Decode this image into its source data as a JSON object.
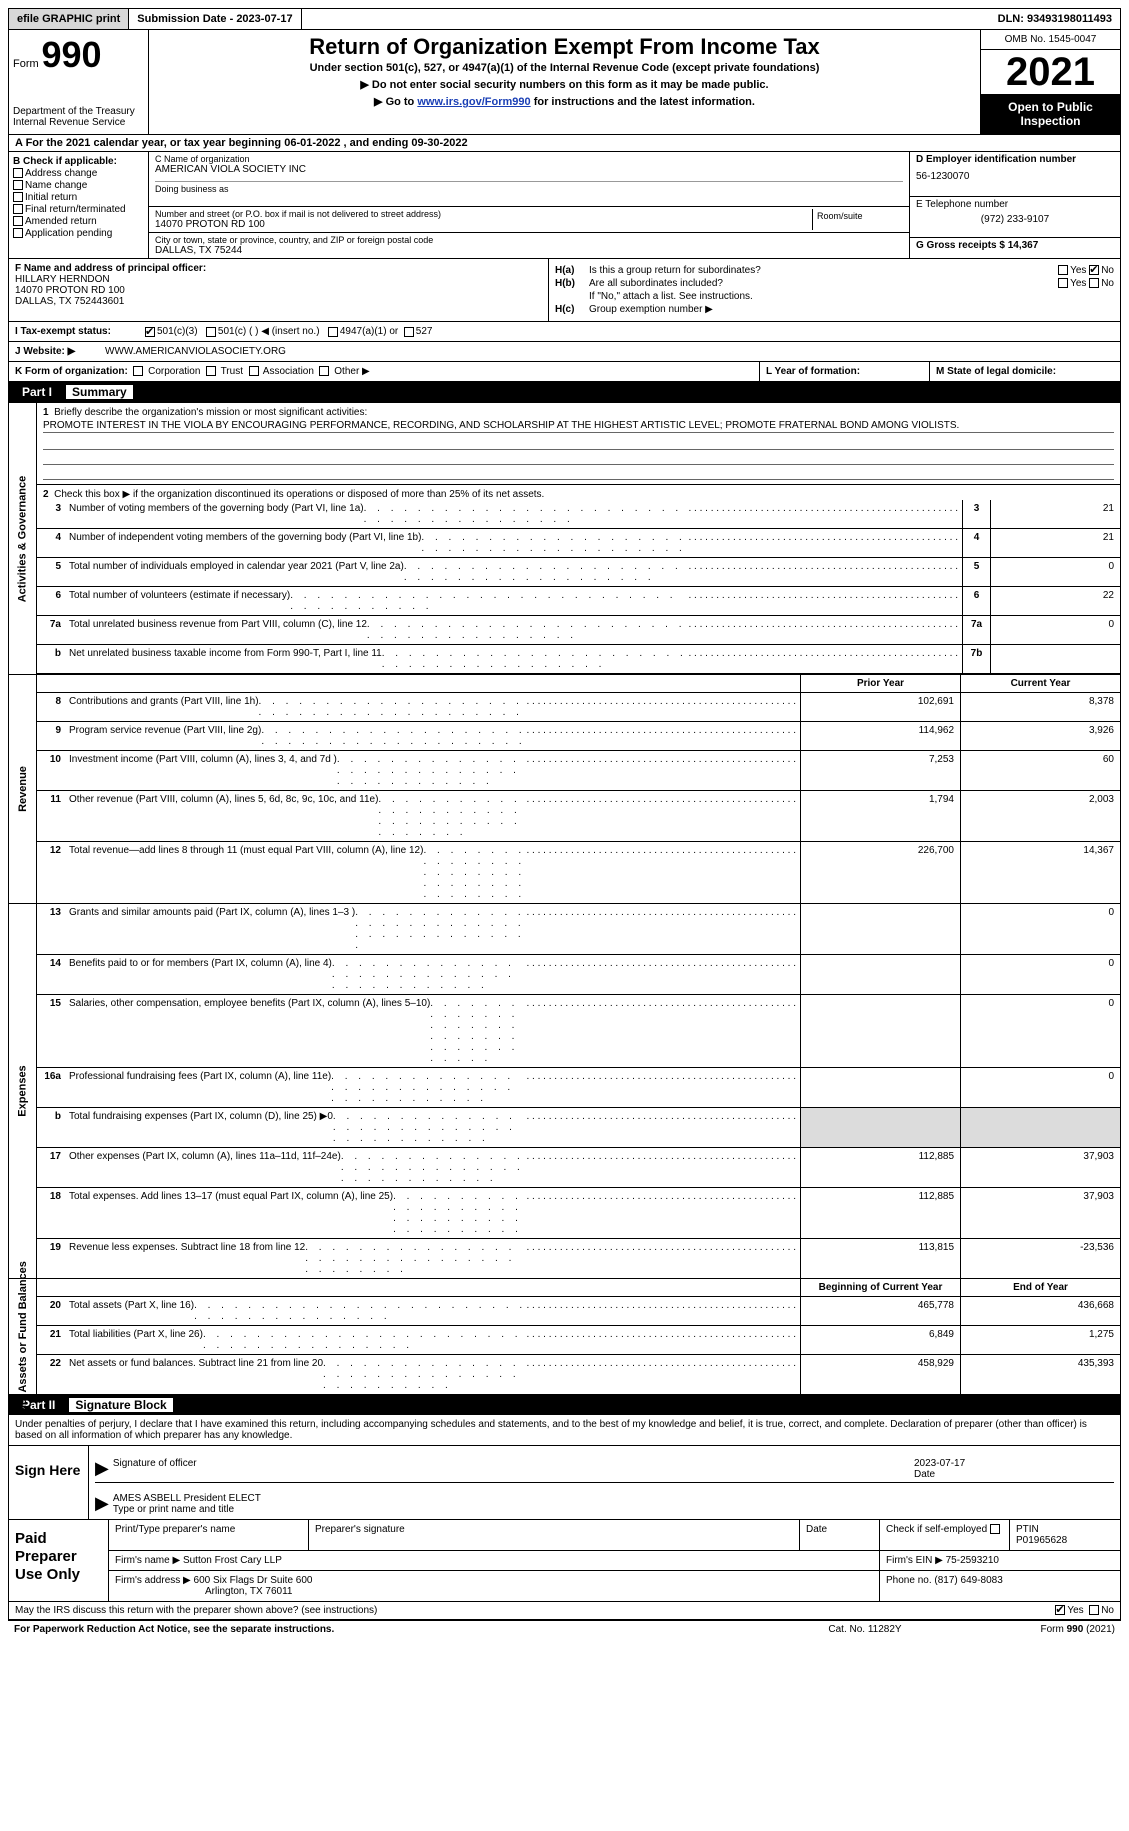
{
  "topbar": {
    "efile": "efile GRAPHIC print",
    "submission": "Submission Date - 2023-07-17",
    "dln": "DLN: 93493198011493"
  },
  "header": {
    "form": "Form",
    "num": "990",
    "dept": "Department of the Treasury Internal Revenue Service",
    "title": "Return of Organization Exempt From Income Tax",
    "sub1": "Under section 501(c), 527, or 4947(a)(1) of the Internal Revenue Code (except private foundations)",
    "sub2": "▶ Do not enter social security numbers on this form as it may be made public.",
    "sub3a": "▶ Go to ",
    "sub3link": "www.irs.gov/Form990",
    "sub3b": " for instructions and the latest information.",
    "omb": "OMB No. 1545-0047",
    "year": "2021",
    "inspect": "Open to Public Inspection"
  },
  "rowA": {
    "a": "A  For the 2021 calendar year, or tax year beginning ",
    "b": "06-01-2022",
    "c": "    , and ending ",
    "d": "09-30-2022"
  },
  "colB": {
    "hdr": "B Check if applicable:",
    "c1": "Address change",
    "c2": "Name change",
    "c3": "Initial return",
    "c4": "Final return/terminated",
    "c5": "Amended return",
    "c6": "Application pending"
  },
  "colC": {
    "nameLbl": "C Name of organization",
    "name": "AMERICAN VIOLA SOCIETY INC",
    "dbaLbl": "Doing business as",
    "dba": "",
    "addrLbl": "Number and street (or P.O. box if mail is not delivered to street address)",
    "room": "Room/suite",
    "addr": "14070 PROTON RD 100",
    "cityLbl": "City or town, state or province, country, and ZIP or foreign postal code",
    "city": "DALLAS, TX  75244"
  },
  "colD": {
    "ein": "D Employer identification number",
    "einv": "56-1230070",
    "tel": "E Telephone number",
    "telv": "(972) 233-9107",
    "gross": "G Gross receipts $ 14,367"
  },
  "secF": {
    "lbl": "F Name and address of principal officer:",
    "name": "HILLARY HERNDON",
    "addr1": "14070 PROTON RD 100",
    "addr2": "DALLAS, TX  752443601"
  },
  "secH": {
    "a": "H(a)",
    "at": "Is this a group return for subordinates?",
    "b": "H(b)",
    "bt": "Are all subordinates included?",
    "note": "If \"No,\" attach a list. See instructions.",
    "c": "H(c)",
    "ct": "Group exemption number ▶",
    "yes": "Yes",
    "no": "No"
  },
  "rowI": {
    "lbl": "I    Tax-exempt status:",
    "o1": "501(c)(3)",
    "o2": "501(c) (   ) ◀ (insert no.)",
    "o3": "4947(a)(1) or",
    "o4": "527"
  },
  "rowJ": {
    "lbl": "J    Website: ▶",
    "val": "WWW.AMERICANVIOLASOCIETY.ORG"
  },
  "rowK": {
    "lbl": "K Form of organization:",
    "o1": "Corporation",
    "o2": "Trust",
    "o3": "Association",
    "o4": "Other ▶"
  },
  "rowL": {
    "lbl": "L Year of formation:"
  },
  "rowM": {
    "lbl": "M State of legal domicile:"
  },
  "part1": {
    "hdr": "Part I",
    "title": "Summary"
  },
  "ag": {
    "vlabel": "Activities & Governance",
    "l1": "Briefly describe the organization's mission or most significant activities:",
    "mission": "PROMOTE INTEREST IN THE VIOLA BY ENCOURAGING PERFORMANCE, RECORDING, AND SCHOLARSHIP AT THE HIGHEST ARTISTIC LEVEL; PROMOTE FRATERNAL BOND AMONG VIOLISTS.",
    "l2": "Check this box ▶        if the organization discontinued its operations or disposed of more than 25% of its net assets.",
    "r": [
      {
        "n": "3",
        "t": "Number of voting members of the governing body (Part VI, line 1a)",
        "b": "3",
        "v": "21"
      },
      {
        "n": "4",
        "t": "Number of independent voting members of the governing body (Part VI, line 1b)",
        "b": "4",
        "v": "21"
      },
      {
        "n": "5",
        "t": "Total number of individuals employed in calendar year 2021 (Part V, line 2a)",
        "b": "5",
        "v": "0"
      },
      {
        "n": "6",
        "t": "Total number of volunteers (estimate if necessary)",
        "b": "6",
        "v": "22"
      },
      {
        "n": "7a",
        "t": "Total unrelated business revenue from Part VIII, column (C), line 12",
        "b": "7a",
        "v": "0"
      },
      {
        "n": "b",
        "t": "Net unrelated business taxable income from Form 990-T, Part I, line 11",
        "b": "7b",
        "v": ""
      }
    ]
  },
  "rev": {
    "vlabel": "Revenue",
    "prior": "Prior Year",
    "curr": "Current Year",
    "r": [
      {
        "n": "8",
        "t": "Contributions and grants (Part VIII, line 1h)",
        "p": "102,691",
        "c": "8,378"
      },
      {
        "n": "9",
        "t": "Program service revenue (Part VIII, line 2g)",
        "p": "114,962",
        "c": "3,926"
      },
      {
        "n": "10",
        "t": "Investment income (Part VIII, column (A), lines 3, 4, and 7d )",
        "p": "7,253",
        "c": "60"
      },
      {
        "n": "11",
        "t": "Other revenue (Part VIII, column (A), lines 5, 6d, 8c, 9c, 10c, and 11e)",
        "p": "1,794",
        "c": "2,003"
      },
      {
        "n": "12",
        "t": "Total revenue—add lines 8 through 11 (must equal Part VIII, column (A), line 12)",
        "p": "226,700",
        "c": "14,367"
      }
    ]
  },
  "exp": {
    "vlabel": "Expenses",
    "r": [
      {
        "n": "13",
        "t": "Grants and similar amounts paid (Part IX, column (A), lines 1–3 )",
        "p": "",
        "c": "0"
      },
      {
        "n": "14",
        "t": "Benefits paid to or for members (Part IX, column (A), line 4)",
        "p": "",
        "c": "0"
      },
      {
        "n": "15",
        "t": "Salaries, other compensation, employee benefits (Part IX, column (A), lines 5–10)",
        "p": "",
        "c": "0"
      },
      {
        "n": "16a",
        "t": "Professional fundraising fees (Part IX, column (A), line 11e)",
        "p": "",
        "c": "0"
      },
      {
        "n": "b",
        "t": "Total fundraising expenses (Part IX, column (D), line 25) ▶0",
        "p": "shade",
        "c": "shade"
      },
      {
        "n": "17",
        "t": "Other expenses (Part IX, column (A), lines 11a–11d, 11f–24e)",
        "p": "112,885",
        "c": "37,903"
      },
      {
        "n": "18",
        "t": "Total expenses. Add lines 13–17 (must equal Part IX, column (A), line 25)",
        "p": "112,885",
        "c": "37,903"
      },
      {
        "n": "19",
        "t": "Revenue less expenses. Subtract line 18 from line 12",
        "p": "113,815",
        "c": "-23,536"
      }
    ]
  },
  "net": {
    "vlabel": "Net Assets or Fund Balances",
    "begin": "Beginning of Current Year",
    "end": "End of Year",
    "r": [
      {
        "n": "20",
        "t": "Total assets (Part X, line 16)",
        "p": "465,778",
        "c": "436,668"
      },
      {
        "n": "21",
        "t": "Total liabilities (Part X, line 26)",
        "p": "6,849",
        "c": "1,275"
      },
      {
        "n": "22",
        "t": "Net assets or fund balances. Subtract line 21 from line 20",
        "p": "458,929",
        "c": "435,393"
      }
    ]
  },
  "part2": {
    "hdr": "Part II",
    "title": "Signature Block"
  },
  "sigtxt": "Under penalties of perjury, I declare that I have examined this return, including accompanying schedules and statements, and to the best of my knowledge and belief, it is true, correct, and complete. Declaration of preparer (other than officer) is based on all information of which preparer has any knowledge.",
  "sign": {
    "here": "Sign Here",
    "siglbl": "Signature of officer",
    "date": "2023-07-17",
    "datelbl": "Date",
    "name": "AMES ASBELL  President ELECT",
    "namelbl": "Type or print name and title"
  },
  "paid": {
    "lbl": "Paid Preparer Use Only",
    "h": {
      "c1": "Print/Type preparer's name",
      "c2": "Preparer's signature",
      "c3": "Date",
      "c4": "Check        if self-employed",
      "c5": "PTIN",
      "c5v": "P01965628"
    },
    "firm": "Firm's name     ▶",
    "firmv": "Sutton Frost Cary LLP",
    "ein": "Firm's EIN ▶",
    "einv": "75-2593210",
    "addr": "Firm's address ▶",
    "addrv1": "600 Six Flags Dr Suite 600",
    "addrv2": "Arlington, TX  76011",
    "phone": "Phone no.",
    "phonev": "(817) 649-8083"
  },
  "footer": {
    "q": "May the IRS discuss this return with the preparer shown above? (see instructions)",
    "yes": "Yes",
    "no": "No"
  },
  "footer2": {
    "a": "For Paperwork Reduction Act Notice, see the separate instructions.",
    "b": "Cat. No. 11282Y",
    "c": "Form 990 (2021)"
  }
}
